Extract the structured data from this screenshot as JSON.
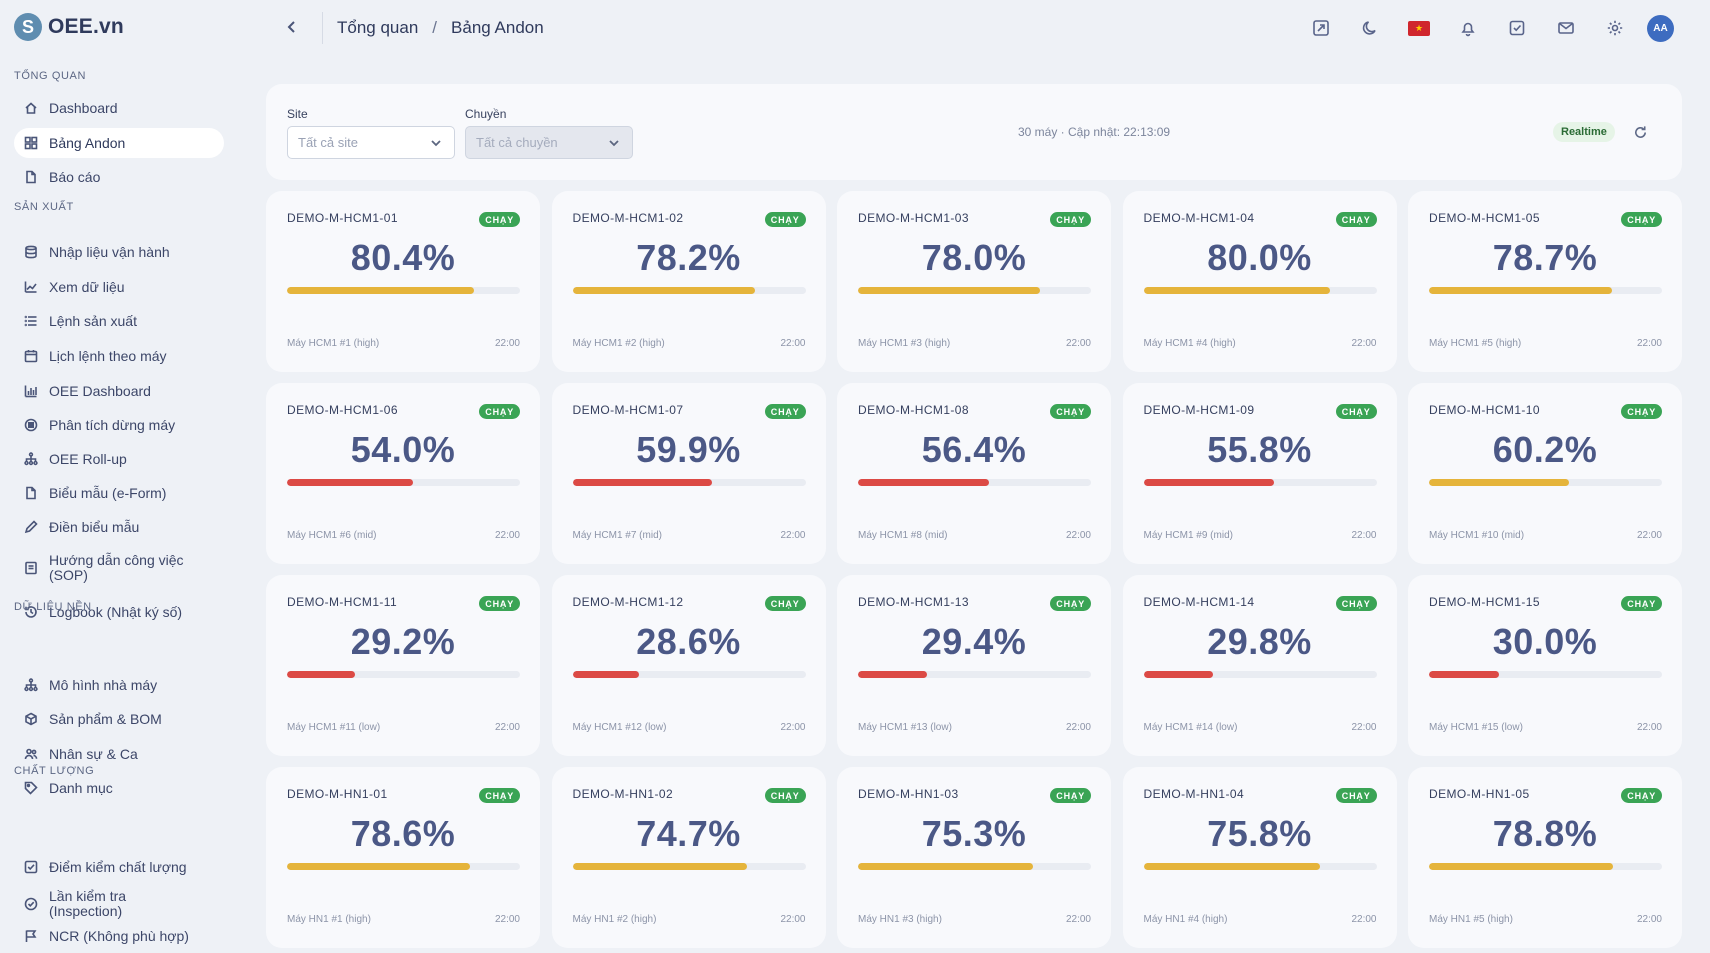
{
  "app": {
    "name": "OEE.vn",
    "logo_letter": "S"
  },
  "sidebar": {
    "sections": [
      {
        "label": "TỔNG QUAN",
        "items": [
          {
            "label": "Dashboard",
            "icon": "home-icon"
          },
          {
            "label": "Bảng Andon",
            "icon": "grid-icon",
            "active": true
          },
          {
            "label": "Báo cáo",
            "icon": "file-icon"
          }
        ]
      },
      {
        "label": "SẢN XUẤT",
        "items": [
          {
            "label": "Nhập liệu vận hành",
            "icon": "database-icon"
          },
          {
            "label": "Xem dữ liệu",
            "icon": "line-chart-icon"
          },
          {
            "label": "Lệnh sản xuất",
            "icon": "list-icon"
          },
          {
            "label": "Lịch lệnh theo máy",
            "icon": "calendar-icon"
          },
          {
            "label": "OEE Dashboard",
            "icon": "bar-chart-icon"
          },
          {
            "label": "Phân tích dừng máy",
            "icon": "stop-circle-icon"
          },
          {
            "label": "OEE Roll-up",
            "icon": "hierarchy-icon"
          },
          {
            "label": "Biểu mẫu (e-Form)",
            "icon": "document-icon"
          },
          {
            "label": "Điền biểu mẫu",
            "icon": "pencil-icon"
          },
          {
            "label": "Hướng dẫn công việc (SOP)",
            "icon": "book-icon"
          },
          {
            "label": "Logbook (Nhật ký số)",
            "icon": "history-icon"
          }
        ]
      },
      {
        "label": "DỮ LIỆU NỀN",
        "items": [
          {
            "label": "Mô hình nhà máy",
            "icon": "hierarchy-icon"
          },
          {
            "label": "Sản phẩm & BOM",
            "icon": "box-icon"
          },
          {
            "label": "Nhân sự & Ca",
            "icon": "users-icon"
          },
          {
            "label": "Danh mục",
            "icon": "tag-icon"
          }
        ]
      },
      {
        "label": "CHẤT LƯỢNG",
        "items": [
          {
            "label": "Điểm kiểm chất lượng",
            "icon": "checkbox-icon"
          },
          {
            "label": "Lần kiểm tra (Inspection)",
            "icon": "check-circle-icon"
          },
          {
            "label": "NCR (Không phù hợp)",
            "icon": "flag-icon"
          }
        ]
      }
    ]
  },
  "header": {
    "breadcrumb": [
      "Tổng quan",
      "Bảng Andon"
    ],
    "separator": "/",
    "avatar_initials": "AA",
    "flag_star": "★"
  },
  "filters": {
    "site_label": "Site",
    "site_value": "Tất cả site",
    "line_label": "Chuyền",
    "line_value": "Tất cả chuyền",
    "update_text": "30 máy · Cập nhật: 22:13:09",
    "realtime_label": "Realtime"
  },
  "colors": {
    "status_green": "#3aa455",
    "bar_yellow": "#e5b43b",
    "bar_red": "#dc4a45"
  },
  "cards": [
    {
      "id": "DEMO-M-HCM1-01",
      "status": "CHẠY",
      "oee": "80.4%",
      "value": 80.4,
      "level": "yellow",
      "machine": "Máy HCM1 #1 (high)",
      "time": "22:00"
    },
    {
      "id": "DEMO-M-HCM1-02",
      "status": "CHẠY",
      "oee": "78.2%",
      "value": 78.2,
      "level": "yellow",
      "machine": "Máy HCM1 #2 (high)",
      "time": "22:00"
    },
    {
      "id": "DEMO-M-HCM1-03",
      "status": "CHẠY",
      "oee": "78.0%",
      "value": 78.0,
      "level": "yellow",
      "machine": "Máy HCM1 #3 (high)",
      "time": "22:00"
    },
    {
      "id": "DEMO-M-HCM1-04",
      "status": "CHẠY",
      "oee": "80.0%",
      "value": 80.0,
      "level": "yellow",
      "machine": "Máy HCM1 #4 (high)",
      "time": "22:00"
    },
    {
      "id": "DEMO-M-HCM1-05",
      "status": "CHẠY",
      "oee": "78.7%",
      "value": 78.7,
      "level": "yellow",
      "machine": "Máy HCM1 #5 (high)",
      "time": "22:00"
    },
    {
      "id": "DEMO-M-HCM1-06",
      "status": "CHẠY",
      "oee": "54.0%",
      "value": 54.0,
      "level": "red",
      "machine": "Máy HCM1 #6 (mid)",
      "time": "22:00"
    },
    {
      "id": "DEMO-M-HCM1-07",
      "status": "CHẠY",
      "oee": "59.9%",
      "value": 59.9,
      "level": "red",
      "machine": "Máy HCM1 #7 (mid)",
      "time": "22:00"
    },
    {
      "id": "DEMO-M-HCM1-08",
      "status": "CHẠY",
      "oee": "56.4%",
      "value": 56.4,
      "level": "red",
      "machine": "Máy HCM1 #8 (mid)",
      "time": "22:00"
    },
    {
      "id": "DEMO-M-HCM1-09",
      "status": "CHẠY",
      "oee": "55.8%",
      "value": 55.8,
      "level": "red",
      "machine": "Máy HCM1 #9 (mid)",
      "time": "22:00"
    },
    {
      "id": "DEMO-M-HCM1-10",
      "status": "CHẠY",
      "oee": "60.2%",
      "value": 60.2,
      "level": "yellow",
      "machine": "Máy HCM1 #10 (mid)",
      "time": "22:00"
    },
    {
      "id": "DEMO-M-HCM1-11",
      "status": "CHẠY",
      "oee": "29.2%",
      "value": 29.2,
      "level": "red",
      "machine": "Máy HCM1 #11 (low)",
      "time": "22:00"
    },
    {
      "id": "DEMO-M-HCM1-12",
      "status": "CHẠY",
      "oee": "28.6%",
      "value": 28.6,
      "level": "red",
      "machine": "Máy HCM1 #12 (low)",
      "time": "22:00"
    },
    {
      "id": "DEMO-M-HCM1-13",
      "status": "CHẠY",
      "oee": "29.4%",
      "value": 29.4,
      "level": "red",
      "machine": "Máy HCM1 #13 (low)",
      "time": "22:00"
    },
    {
      "id": "DEMO-M-HCM1-14",
      "status": "CHẠY",
      "oee": "29.8%",
      "value": 29.8,
      "level": "red",
      "machine": "Máy HCM1 #14 (low)",
      "time": "22:00"
    },
    {
      "id": "DEMO-M-HCM1-15",
      "status": "CHẠY",
      "oee": "30.0%",
      "value": 30.0,
      "level": "red",
      "machine": "Máy HCM1 #15 (low)",
      "time": "22:00"
    },
    {
      "id": "DEMO-M-HN1-01",
      "status": "CHẠY",
      "oee": "78.6%",
      "value": 78.6,
      "level": "yellow",
      "machine": "Máy HN1 #1 (high)",
      "time": "22:00"
    },
    {
      "id": "DEMO-M-HN1-02",
      "status": "CHẠY",
      "oee": "74.7%",
      "value": 74.7,
      "level": "yellow",
      "machine": "Máy HN1 #2 (high)",
      "time": "22:00"
    },
    {
      "id": "DEMO-M-HN1-03",
      "status": "CHẠY",
      "oee": "75.3%",
      "value": 75.3,
      "level": "yellow",
      "machine": "Máy HN1 #3 (high)",
      "time": "22:00"
    },
    {
      "id": "DEMO-M-HN1-04",
      "status": "CHẠY",
      "oee": "75.8%",
      "value": 75.8,
      "level": "yellow",
      "machine": "Máy HN1 #4 (high)",
      "time": "22:00"
    },
    {
      "id": "DEMO-M-HN1-05",
      "status": "CHẠY",
      "oee": "78.8%",
      "value": 78.8,
      "level": "yellow",
      "machine": "Máy HN1 #5 (high)",
      "time": "22:00"
    }
  ]
}
